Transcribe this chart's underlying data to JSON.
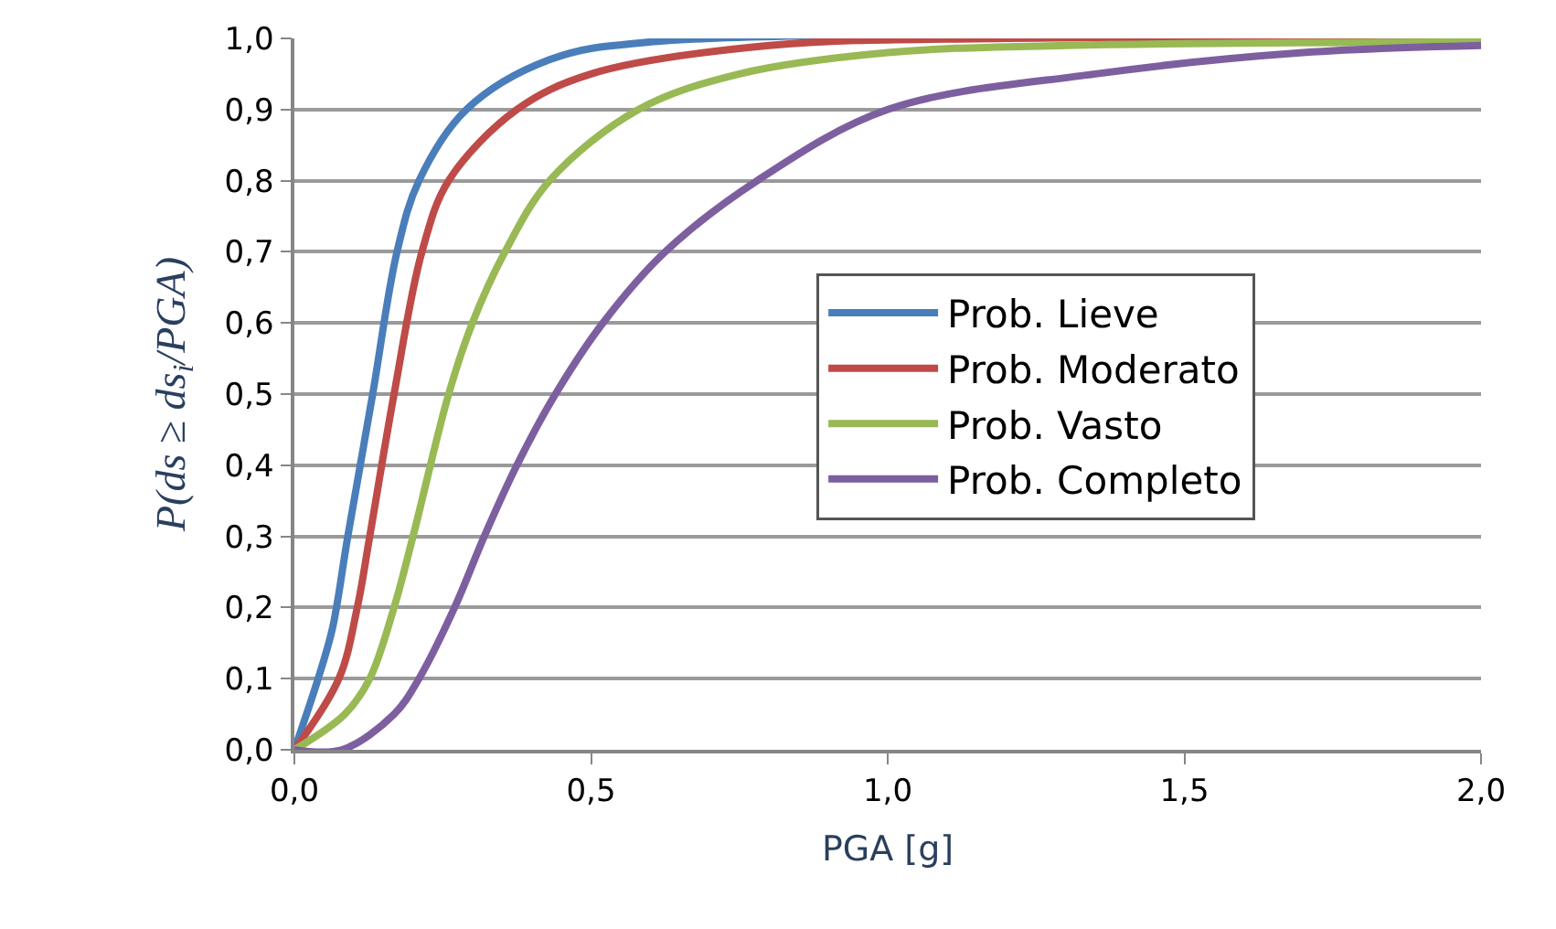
{
  "chart_data": {
    "type": "line",
    "xlabel": "PGA [g]",
    "ylabel": "P(ds ≥ ds$_{i}$/PGA)",
    "xlim": [
      0,
      2
    ],
    "ylim": [
      0,
      1
    ],
    "xticks": [
      {
        "value": 0,
        "label": "0,0"
      },
      {
        "value": 0.5,
        "label": "0,5"
      },
      {
        "value": 1,
        "label": "1,0"
      },
      {
        "value": 1.5,
        "label": "1,5"
      },
      {
        "value": 2,
        "label": "2,0"
      }
    ],
    "yticks": [
      {
        "value": 0,
        "label": "0,0"
      },
      {
        "value": 0.1,
        "label": "0,1"
      },
      {
        "value": 0.2,
        "label": "0,2"
      },
      {
        "value": 0.3,
        "label": "0,3"
      },
      {
        "value": 0.4,
        "label": "0,4"
      },
      {
        "value": 0.5,
        "label": "0,5"
      },
      {
        "value": 0.6,
        "label": "0,6"
      },
      {
        "value": 0.7,
        "label": "0,7"
      },
      {
        "value": 0.8,
        "label": "0,8"
      },
      {
        "value": 0.9,
        "label": "0,9"
      },
      {
        "value": 1,
        "label": "1,0"
      }
    ],
    "grid": "y",
    "legend": "right",
    "marker": "none",
    "line_style": "solid",
    "series": [
      {
        "name": "Prob. Lieve",
        "color": "#4a7ebb",
        "x": [
          0,
          0.04,
          0.064,
          0.09,
          0.132,
          0.173,
          0.21,
          0.29,
          0.43,
          0.6,
          2.0
        ],
        "values": [
          0,
          0.1,
          0.17,
          0.3,
          0.5,
          0.7,
          0.8,
          0.9,
          0.97,
          0.995,
          1
        ]
      },
      {
        "name": "Prob. Moderato",
        "color": "#be4b48",
        "x": [
          0,
          0.075,
          0.106,
          0.127,
          0.168,
          0.215,
          0.26,
          0.375,
          0.5,
          0.8,
          1.2,
          2.0
        ],
        "values": [
          0,
          0.1,
          0.2,
          0.3,
          0.5,
          0.7,
          0.8,
          0.9,
          0.95,
          0.99,
          1,
          1
        ]
      },
      {
        "name": "Prob. Vasto",
        "color": "#98b954",
        "x": [
          0,
          0.085,
          0.127,
          0.168,
          0.2,
          0.26,
          0.3,
          0.355,
          0.43,
          0.58,
          0.75,
          1.0,
          1.3,
          2.0
        ],
        "values": [
          0,
          0.05,
          0.1,
          0.2,
          0.3,
          0.5,
          0.6,
          0.7,
          0.8,
          0.9,
          0.95,
          0.98,
          0.99,
          0.995
        ]
      },
      {
        "name": "Prob. Completo",
        "color": "#7d5fa0",
        "x": [
          0,
          0.08,
          0.168,
          0.21,
          0.27,
          0.32,
          0.375,
          0.44,
          0.52,
          0.625,
          0.78,
          1.0,
          1.35,
          1.7,
          2.0
        ],
        "values": [
          0,
          0,
          0.05,
          0.1,
          0.2,
          0.3,
          0.4,
          0.5,
          0.6,
          0.7,
          0.8,
          0.9,
          0.95,
          0.98,
          0.99
        ]
      }
    ]
  }
}
